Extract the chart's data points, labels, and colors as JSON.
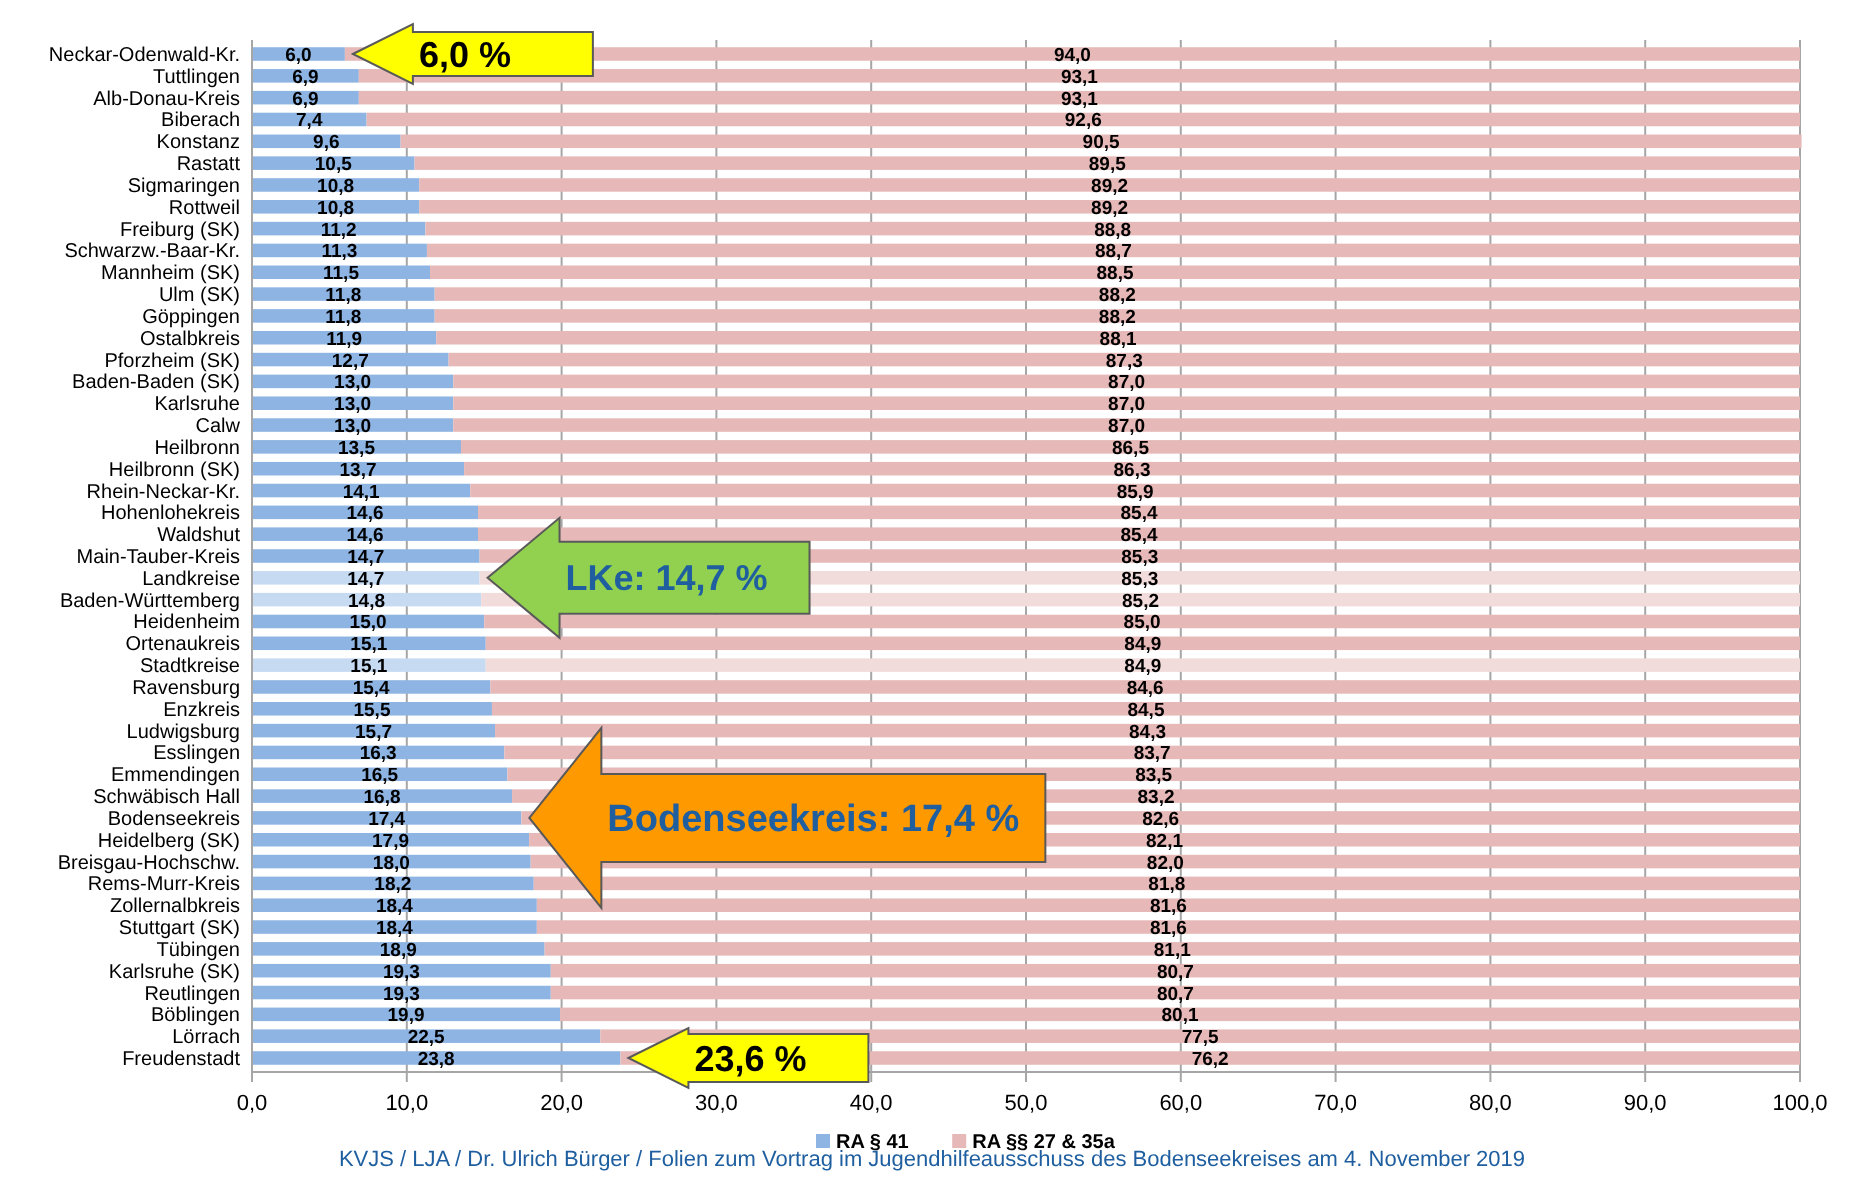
{
  "chart_data": {
    "type": "bar",
    "orientation": "horizontal",
    "stacked": true,
    "categories": [
      "Neckar-Odenwald-Kr.",
      "Tuttlingen",
      "Alb-Donau-Kreis",
      "Biberach",
      "Konstanz",
      "Rastatt",
      "Sigmaringen",
      "Rottweil",
      "Freiburg (SK)",
      "Schwarzw.-Baar-Kr.",
      "Mannheim (SK)",
      "Ulm (SK)",
      "Göppingen",
      "Ostalbkreis",
      "Pforzheim (SK)",
      "Baden-Baden (SK)",
      "Karlsruhe",
      "Calw",
      "Heilbronn",
      "Heilbronn (SK)",
      "Rhein-Neckar-Kr.",
      "Hohenlohekreis",
      "Waldshut",
      "Main-Tauber-Kreis",
      "Landkreise",
      "Baden-Württemberg",
      "Heidenheim",
      "Ortenaukreis",
      "Stadtkreise",
      "Ravensburg",
      "Enzkreis",
      "Ludwigsburg",
      "Esslingen",
      "Emmendingen",
      "Schwäbisch Hall",
      "Bodenseekreis",
      "Heidelberg (SK)",
      "Breisgau-Hochschw.",
      "Rems-Murr-Kreis",
      "Zollernalbkreis",
      "Stuttgart (SK)",
      "Tübingen",
      "Karlsruhe (SK)",
      "Reutlingen",
      "Böblingen",
      "Lörrach",
      "Freudenstadt"
    ],
    "series": [
      {
        "name": "RA § 41",
        "color": "#8db4e2",
        "colors": [
          "#8db4e2",
          "#8db4e2",
          "#8db4e2",
          "#8db4e2",
          "#8db4e2",
          "#8db4e2",
          "#8db4e2",
          "#8db4e2",
          "#8db4e2",
          "#8db4e2",
          "#8db4e2",
          "#8db4e2",
          "#8db4e2",
          "#8db4e2",
          "#8db4e2",
          "#8db4e2",
          "#8db4e2",
          "#8db4e2",
          "#8db4e2",
          "#8db4e2",
          "#8db4e2",
          "#8db4e2",
          "#8db4e2",
          "#8db4e2",
          "#c6dbf2",
          "#c6dbf2",
          "#8db4e2",
          "#8db4e2",
          "#c6dbf2",
          "#8db4e2",
          "#8db4e2",
          "#8db4e2",
          "#8db4e2",
          "#8db4e2",
          "#8db4e2",
          "#8db4e2",
          "#8db4e2",
          "#8db4e2",
          "#8db4e2",
          "#8db4e2",
          "#8db4e2",
          "#8db4e2",
          "#8db4e2",
          "#8db4e2",
          "#8db4e2",
          "#8db4e2",
          "#8db4e2"
        ],
        "values": [
          6.0,
          6.9,
          6.9,
          7.4,
          9.6,
          10.5,
          10.8,
          10.8,
          11.2,
          11.3,
          11.5,
          11.8,
          11.8,
          11.9,
          12.7,
          13.0,
          13.0,
          13.0,
          13.5,
          13.7,
          14.1,
          14.6,
          14.6,
          14.7,
          14.7,
          14.8,
          15.0,
          15.1,
          15.1,
          15.4,
          15.5,
          15.7,
          16.3,
          16.5,
          16.8,
          17.4,
          17.9,
          18.0,
          18.2,
          18.4,
          18.4,
          18.9,
          19.3,
          19.3,
          19.9,
          22.5,
          23.8
        ],
        "value_labels": [
          "6,0",
          "6,9",
          "6,9",
          "7,4",
          "9,6",
          "10,5",
          "10,8",
          "10,8",
          "11,2",
          "11,3",
          "11,5",
          "11,8",
          "11,8",
          "11,9",
          "12,7",
          "13,0",
          "13,0",
          "13,0",
          "13,5",
          "13,7",
          "14,1",
          "14,6",
          "14,6",
          "14,7",
          "14,7",
          "14,8",
          "15,0",
          "15,1",
          "15,1",
          "15,4",
          "15,5",
          "15,7",
          "16,3",
          "16,5",
          "16,8",
          "17,4",
          "17,9",
          "18,0",
          "18,2",
          "18,4",
          "18,4",
          "18,9",
          "19,3",
          "19,3",
          "19,9",
          "22,5",
          "23,8"
        ]
      },
      {
        "name": "RA §§ 27 & 35a",
        "color": "#e6b9b8",
        "colors": [
          "#e6b9b8",
          "#e6b9b8",
          "#e6b9b8",
          "#e6b9b8",
          "#e6b9b8",
          "#e6b9b8",
          "#e6b9b8",
          "#e6b9b8",
          "#e6b9b8",
          "#e6b9b8",
          "#e6b9b8",
          "#e6b9b8",
          "#e6b9b8",
          "#e6b9b8",
          "#e6b9b8",
          "#e6b9b8",
          "#e6b9b8",
          "#e6b9b8",
          "#e6b9b8",
          "#e6b9b8",
          "#e6b9b8",
          "#e6b9b8",
          "#e6b9b8",
          "#e6b9b8",
          "#f2dcdb",
          "#f2dcdb",
          "#e6b9b8",
          "#e6b9b8",
          "#f2dcdb",
          "#e6b9b8",
          "#e6b9b8",
          "#e6b9b8",
          "#e6b9b8",
          "#e6b9b8",
          "#e6b9b8",
          "#e6b9b8",
          "#e6b9b8",
          "#e6b9b8",
          "#e6b9b8",
          "#e6b9b8",
          "#e6b9b8",
          "#e6b9b8",
          "#e6b9b8",
          "#e6b9b8",
          "#e6b9b8",
          "#e6b9b8",
          "#e6b9b8"
        ],
        "values": [
          94.0,
          93.1,
          93.1,
          92.6,
          90.5,
          89.5,
          89.2,
          89.2,
          88.8,
          88.7,
          88.5,
          88.2,
          88.2,
          88.1,
          87.3,
          87.0,
          87.0,
          87.0,
          86.5,
          86.3,
          85.9,
          85.4,
          85.4,
          85.3,
          85.3,
          85.2,
          85.0,
          84.9,
          84.9,
          84.6,
          84.5,
          84.3,
          83.7,
          83.5,
          83.2,
          82.6,
          82.1,
          82.0,
          81.8,
          81.6,
          81.6,
          81.1,
          80.7,
          80.7,
          80.1,
          77.5,
          76.2
        ],
        "value_labels": [
          "94,0",
          "93,1",
          "93,1",
          "92,6",
          "90,5",
          "89,5",
          "89,2",
          "89,2",
          "88,8",
          "88,7",
          "88,5",
          "88,2",
          "88,2",
          "88,1",
          "87,3",
          "87,0",
          "87,0",
          "87,0",
          "86,5",
          "86,3",
          "85,9",
          "85,4",
          "85,4",
          "85,3",
          "85,3",
          "85,2",
          "85,0",
          "84,9",
          "84,9",
          "84,6",
          "84,5",
          "84,3",
          "83,7",
          "83,5",
          "83,2",
          "82,6",
          "82,1",
          "82,0",
          "81,8",
          "81,6",
          "81,6",
          "81,1",
          "80,7",
          "80,7",
          "80,1",
          "77,5",
          "76,2"
        ]
      }
    ],
    "xlim": [
      0,
      100
    ],
    "xticks": [
      {
        "value": 0,
        "label": "0,0"
      },
      {
        "value": 10,
        "label": "10,0"
      },
      {
        "value": 20,
        "label": "20,0"
      },
      {
        "value": 30,
        "label": "30,0"
      },
      {
        "value": 40,
        "label": "40,0"
      },
      {
        "value": 50,
        "label": "50,0"
      },
      {
        "value": 60,
        "label": "60,0"
      },
      {
        "value": 70,
        "label": "70,0"
      },
      {
        "value": 80,
        "label": "80,0"
      },
      {
        "value": 90,
        "label": "90,0"
      },
      {
        "value": 100,
        "label": "100,0"
      }
    ],
    "grid": "x",
    "legend": "bottom",
    "annotations": [
      {
        "text": "6,0 %",
        "x": 6.0,
        "y": "Neckar-Odenwald-Kr."
      },
      {
        "text": "LKe: 14,7 %",
        "x": 14.7,
        "y": "Landkreise"
      },
      {
        "text": "Bodenseekreis: 17,4 %",
        "x": 17.4,
        "y": "Bodenseekreis"
      },
      {
        "text": "23,6 %",
        "x": 23.8,
        "y": "Freudenstadt"
      },
      "KVJS / LJA / Dr. Ulrich Bürger / Folien zum Vortrag im Jugendhilfeausschuss des Bodenseekreises am 4. November 2019"
    ]
  }
}
